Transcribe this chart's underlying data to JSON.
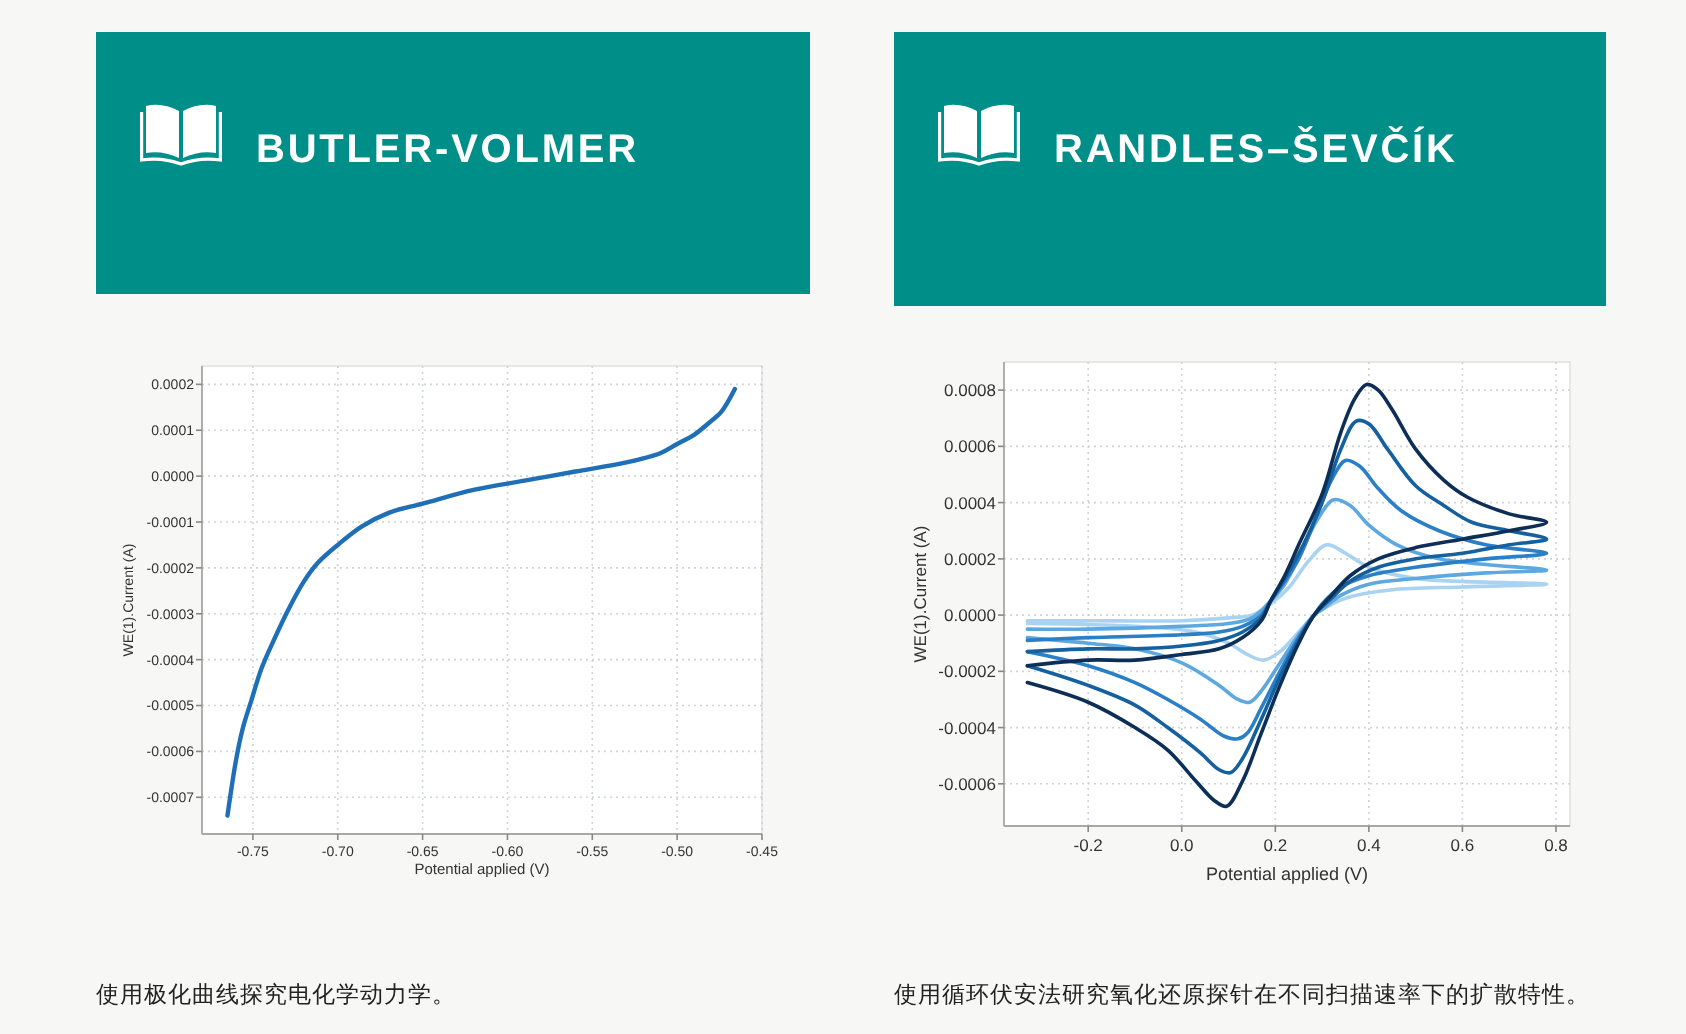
{
  "chart_data": [
    {
      "type": "line",
      "title": "BUTLER-VOLMER",
      "xlabel": "Potential applied (V)",
      "ylabel": "WE(1).Current (A)",
      "annotations": [
        "使用极化曲线探究电化学动力学。"
      ],
      "xlim": [
        -0.78,
        -0.45
      ],
      "ylim": [
        -0.00078,
        0.00024
      ],
      "xticks": [
        -0.75,
        {
          "value": -0.7,
          "label": "-0.70"
        },
        -0.65,
        {
          "value": -0.6,
          "label": "-0.60"
        },
        -0.55,
        {
          "value": -0.5,
          "label": "-0.50"
        },
        -0.45
      ],
      "yticks": [
        0.0002,
        0.0001,
        {
          "value": 0,
          "label": "0.0000"
        },
        -0.0001,
        -0.0002,
        -0.0003,
        -0.0004,
        -0.0005,
        -0.0006,
        -0.0007
      ],
      "grid": true,
      "series": [
        {
          "color": "#1f6fb6",
          "x": [
            -0.765,
            -0.76,
            -0.756,
            -0.751,
            -0.745,
            -0.738,
            -0.729,
            -0.72,
            -0.712,
            -0.7,
            -0.686,
            -0.67,
            -0.65,
            -0.62,
            -0.59,
            -0.56,
            -0.53,
            -0.51,
            -0.5,
            -0.49,
            -0.48,
            -0.474,
            -0.466
          ],
          "values": [
            -0.00074,
            -0.00062,
            -0.00055,
            -0.00049,
            -0.00042,
            -0.00036,
            -0.00029,
            -0.00023,
            -0.00019,
            -0.00015,
            -0.00011,
            -8e-05,
            -6e-05,
            -3e-05,
            -1e-05,
            1e-05,
            3e-05,
            5e-05,
            7e-05,
            9e-05,
            0.00012,
            0.00014,
            0.00019
          ]
        }
      ]
    },
    {
      "type": "line",
      "title": "RANDLES–ŠEVČÍK",
      "xlabel": "Potential applied (V)",
      "ylabel": "WE(1).Current (A)",
      "annotations": [
        "使用循环伏安法研究氧化还原探针在不同扫描速率下的扩散特性。"
      ],
      "xlim": [
        -0.38,
        0.83
      ],
      "ylim": [
        -0.00075,
        0.0009
      ],
      "xticks": [
        -0.2,
        {
          "value": 0,
          "label": "0.0"
        },
        0.2,
        0.4,
        0.6,
        0.8
      ],
      "yticks": [
        0.0008,
        0.0006,
        0.0004,
        0.0002,
        {
          "value": 0,
          "label": "0.0000"
        },
        -0.0002,
        -0.0004,
        -0.0006
      ],
      "grid": true,
      "series": [
        {
          "color": "#a9d3f0",
          "x": [
            -0.33,
            -0.2,
            0,
            0.1,
            0.15,
            0.19,
            0.23,
            0.27,
            0.31,
            0.35,
            0.4,
            0.5,
            0.6,
            0.78,
            0.6,
            0.45,
            0.35,
            0.3,
            0.283,
            0.25,
            0.21,
            0.175,
            0.14,
            0.1,
            0.03,
            -0.1,
            -0.33
          ],
          "values": [
            -2e-05,
            -2e-05,
            -2e-05,
            -1e-05,
            0,
            4e-05,
            0.0001,
            0.00019,
            0.00025,
            0.00022,
            0.00017,
            0.00013,
            0.00012,
            0.00011,
            0.0001,
            9e-05,
            6e-05,
            2e-05,
            0,
            -6e-05,
            -0.00013,
            -0.00016,
            -0.00014,
            -0.0001,
            -6e-05,
            -4e-05,
            -3e-05
          ]
        },
        {
          "color": "#5ea8e0",
          "x": [
            -0.33,
            -0.2,
            0,
            0.1,
            0.15,
            0.19,
            0.22,
            0.26,
            0.29,
            0.325,
            0.36,
            0.4,
            0.46,
            0.55,
            0.65,
            0.78,
            0.65,
            0.5,
            0.4,
            0.34,
            0.3,
            0.283,
            0.25,
            0.21,
            0.17,
            0.145,
            0.12,
            0.08,
            0,
            -0.1,
            -0.2,
            -0.33
          ],
          "values": [
            -5e-05,
            -5e-05,
            -4e-05,
            -3e-05,
            -1e-05,
            5e-05,
            0.00011,
            0.00024,
            0.00034,
            0.00041,
            0.00039,
            0.00032,
            0.00025,
            0.0002,
            0.00018,
            0.00016,
            0.00015,
            0.00013,
            0.00011,
            7e-05,
            2e-05,
            0,
            -7e-05,
            -0.00017,
            -0.00027,
            -0.00031,
            -0.0003,
            -0.00025,
            -0.00017,
            -0.00012,
            -0.0001,
            -8e-05
          ]
        },
        {
          "color": "#2a7fc6",
          "x": [
            -0.33,
            -0.2,
            0,
            0.08,
            0.13,
            0.17,
            0.19,
            0.22,
            0.25,
            0.29,
            0.32,
            0.35,
            0.38,
            0.42,
            0.47,
            0.55,
            0.65,
            0.78,
            0.65,
            0.5,
            0.4,
            0.34,
            0.3,
            0.283,
            0.25,
            0.21,
            0.17,
            0.14,
            0.12,
            0.09,
            0.04,
            -0.03,
            -0.1,
            -0.2,
            -0.33
          ],
          "values": [
            -9e-05,
            -8e-05,
            -7e-05,
            -6e-05,
            -4e-05,
            0,
            5e-05,
            0.00012,
            0.0002,
            0.00036,
            0.00048,
            0.00055,
            0.00053,
            0.00045,
            0.00037,
            0.0003,
            0.00025,
            0.00022,
            0.0002,
            0.00017,
            0.00014,
            0.0001,
            4e-05,
            0,
            -8e-05,
            -0.0002,
            -0.00033,
            -0.00042,
            -0.00044,
            -0.00043,
            -0.00037,
            -0.0003,
            -0.00024,
            -0.00018,
            -0.00013
          ]
        },
        {
          "color": "#15609f",
          "x": [
            -0.33,
            -0.2,
            -0.1,
            0,
            0.08,
            0.13,
            0.17,
            0.19,
            0.22,
            0.26,
            0.3,
            0.34,
            0.373,
            0.4,
            0.44,
            0.5,
            0.56,
            0.62,
            0.7,
            0.78,
            0.7,
            0.6,
            0.5,
            0.42,
            0.36,
            0.32,
            0.283,
            0.25,
            0.21,
            0.17,
            0.13,
            0.105,
            0.08,
            0.04,
            -0.03,
            -0.1,
            -0.2,
            -0.33
          ],
          "values": [
            -0.00013,
            -0.00012,
            -0.00012,
            -0.00011,
            -9e-05,
            -6e-05,
            -1e-05,
            5e-05,
            0.00013,
            0.00025,
            0.0004,
            0.00059,
            0.00069,
            0.00068,
            0.00059,
            0.00046,
            0.00039,
            0.00033,
            0.0003,
            0.00027,
            0.00025,
            0.00022,
            0.0002,
            0.00017,
            0.00012,
            6e-05,
            0,
            -9e-05,
            -0.00022,
            -0.00037,
            -0.00051,
            -0.00056,
            -0.00055,
            -0.00049,
            -0.0004,
            -0.00032,
            -0.00025,
            -0.00018
          ]
        },
        {
          "color": "#0c2e57",
          "x": [
            -0.33,
            -0.2,
            -0.1,
            0,
            0.08,
            0.13,
            0.17,
            0.19,
            0.22,
            0.25,
            0.3,
            0.34,
            0.37,
            0.395,
            0.42,
            0.45,
            0.5,
            0.56,
            0.61,
            0.7,
            0.78,
            0.7,
            0.6,
            0.5,
            0.42,
            0.36,
            0.32,
            0.283,
            0.25,
            0.21,
            0.17,
            0.13,
            0.096,
            0.07,
            0.03,
            -0.03,
            -0.1,
            -0.2,
            -0.33
          ],
          "values": [
            -0.00018,
            -0.00016,
            -0.00016,
            -0.00014,
            -0.00012,
            -8e-05,
            -2e-05,
            5e-05,
            0.00014,
            0.00025,
            0.00043,
            0.00065,
            0.00077,
            0.00082,
            0.0008,
            0.00073,
            0.00059,
            0.00048,
            0.00042,
            0.00036,
            0.00033,
            0.0003,
            0.00027,
            0.00024,
            0.0002,
            0.00014,
            7e-05,
            0,
            -0.0001,
            -0.00025,
            -0.00042,
            -0.00059,
            -0.00068,
            -0.00066,
            -0.00059,
            -0.00048,
            -0.0004,
            -0.00031,
            -0.00024
          ]
        }
      ]
    }
  ]
}
